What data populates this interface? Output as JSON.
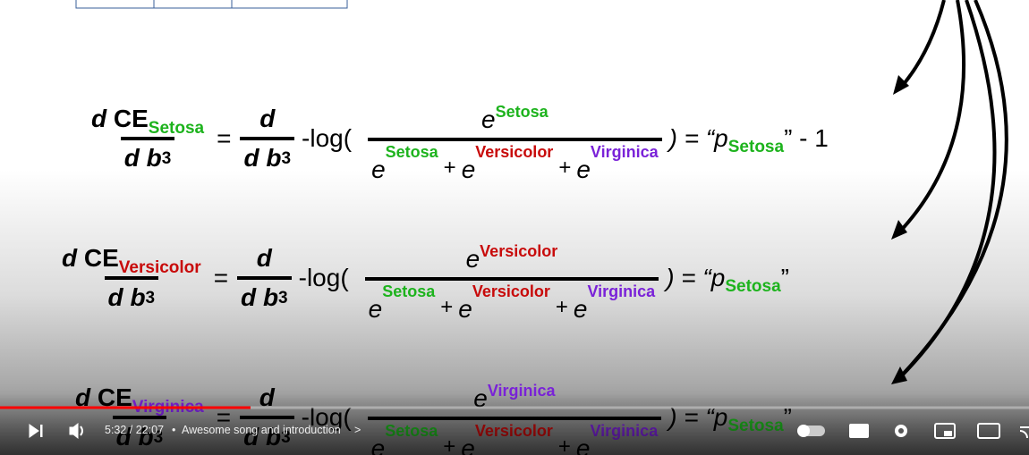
{
  "colors": {
    "Setosa": "#1db31d",
    "Versicolor": "#c80a0a",
    "Virginica": "#7a22d8"
  },
  "equations": [
    {
      "lhs": {
        "d": "d",
        "symbol": "CE",
        "sub": "Setosa",
        "den_d": "d",
        "den_b": "b",
        "den_sub": "3"
      },
      "equals": "=",
      "derivative": {
        "d": "d",
        "den_d": "d",
        "den_b": "b",
        "den_sub": "3"
      },
      "log_open": "-log(",
      "softmax": {
        "base": "e",
        "sup": "Setosa",
        "plus": "+",
        "terms": [
          {
            "base": "e",
            "sup": "Setosa"
          },
          {
            "base": "e",
            "sup": "Versicolor"
          },
          {
            "base": "e",
            "sup": "Virginica"
          }
        ]
      },
      "result": ") = “p",
      "result_sub": "Setosa",
      "result_tail": "” - 1"
    },
    {
      "lhs": {
        "d": "d",
        "symbol": "CE",
        "sub": "Versicolor",
        "den_d": "d",
        "den_b": "b",
        "den_sub": "3"
      },
      "equals": "=",
      "derivative": {
        "d": "d",
        "den_d": "d",
        "den_b": "b",
        "den_sub": "3"
      },
      "log_open": "-log(",
      "softmax": {
        "base": "e",
        "sup": "Versicolor",
        "plus": "+",
        "terms": [
          {
            "base": "e",
            "sup": "Setosa"
          },
          {
            "base": "e",
            "sup": "Versicolor"
          },
          {
            "base": "e",
            "sup": "Virginica"
          }
        ]
      },
      "result": ") = “p",
      "result_sub": "Setosa",
      "result_tail": "”"
    },
    {
      "lhs": {
        "d": "d",
        "symbol": "CE",
        "sub": "Virginica",
        "den_d": "d",
        "den_b": "b",
        "den_sub": "3"
      },
      "equals": "=",
      "derivative": {
        "d": "d",
        "den_d": "d",
        "den_b": "b",
        "den_sub": "3"
      },
      "log_open": "-log(",
      "softmax": {
        "base": "e",
        "sup": "Virginica",
        "plus": "+",
        "terms": [
          {
            "base": "e",
            "sup": "Setosa"
          },
          {
            "base": "e",
            "sup": "Versicolor"
          },
          {
            "base": "e",
            "sup": "Virginica"
          }
        ]
      },
      "result": ") = “p",
      "result_sub": "Setosa",
      "result_tail": "”"
    }
  ],
  "player": {
    "time": "5:32 / 22:07",
    "separator": "•",
    "chapter": "Awesome song and introduction",
    "chapter_arrow": ">"
  }
}
